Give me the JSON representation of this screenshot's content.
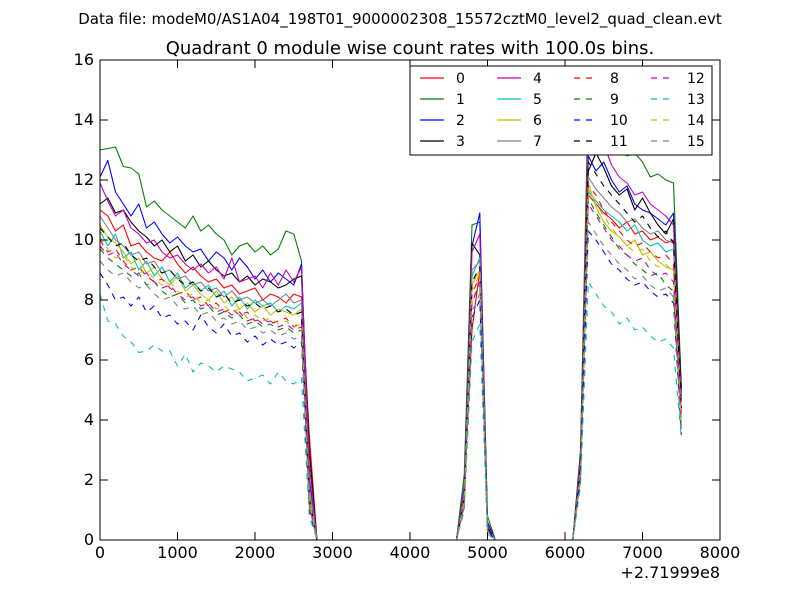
{
  "chart_data": {
    "type": "line",
    "supertitle": "Data file: modeM0/AS1A04_198T01_9000002308_15572cztM0_level2_quad_clean.evt",
    "title": "Quadrant 0 module wise count rates with 100.0s bins.",
    "xlabel": "",
    "ylabel": "",
    "xlim": [
      0,
      8000
    ],
    "ylim": [
      0,
      16
    ],
    "x_offset_label": "+2.71999e8",
    "xticks": [
      0,
      1000,
      2000,
      3000,
      4000,
      5000,
      6000,
      7000,
      8000
    ],
    "xtick_labels": [
      "0",
      "1000",
      "2000",
      "3000",
      "4000",
      "5000",
      "6000",
      "7000",
      "8000"
    ],
    "yticks": [
      0,
      2,
      4,
      6,
      8,
      10,
      12,
      14,
      16
    ],
    "ytick_labels": [
      "0",
      "2",
      "4",
      "6",
      "8",
      "10",
      "12",
      "14",
      "16"
    ],
    "legend_position": "top-right",
    "legend_columns": 4,
    "x": [
      0,
      100,
      200,
      300,
      400,
      500,
      600,
      700,
      800,
      900,
      1000,
      1100,
      1200,
      1300,
      1400,
      1500,
      1600,
      1700,
      1800,
      1900,
      2000,
      2100,
      2200,
      2300,
      2400,
      2500,
      2600,
      2700,
      2800,
      2900,
      4600,
      4700,
      4800,
      4900,
      5000,
      5100,
      6100,
      6200,
      6300,
      6400,
      6500,
      6600,
      6700,
      6800,
      6900,
      7000,
      7100,
      7200,
      7300,
      7400,
      7500
    ],
    "series": [
      {
        "name": "0",
        "color": "#ff0000",
        "dash": "solid",
        "values": [
          11.0,
          10.8,
          10.3,
          10.5,
          9.8,
          9.9,
          9.6,
          9.4,
          9.3,
          9.6,
          9.2,
          8.9,
          9.1,
          8.8,
          8.6,
          8.7,
          8.4,
          8.5,
          8.2,
          8.3,
          8.4,
          8.0,
          8.2,
          8.1,
          7.9,
          8.2,
          8.1,
          3.5,
          0,
          0,
          0,
          1.5,
          7.0,
          9.0,
          0.4,
          0,
          0,
          2.5,
          11.5,
          11.2,
          10.9,
          10.7,
          10.4,
          10.6,
          10.2,
          10.3,
          10.0,
          10.1,
          9.9,
          10.0,
          4.8
        ]
      },
      {
        "name": "1",
        "color": "#008000",
        "dash": "solid",
        "values": [
          13.0,
          13.05,
          13.1,
          12.45,
          12.4,
          12.2,
          11.1,
          11.3,
          11.0,
          10.8,
          10.6,
          10.4,
          10.8,
          10.3,
          10.5,
          10.2,
          10.0,
          9.5,
          9.8,
          9.9,
          9.6,
          9.8,
          9.5,
          9.7,
          10.3,
          10.2,
          9.3,
          2.0,
          0,
          0,
          0,
          2.2,
          10.5,
          10.6,
          0.8,
          0,
          0,
          3.0,
          14.9,
          14.3,
          13.8,
          13.1,
          13.5,
          12.8,
          12.9,
          12.6,
          12.1,
          12.2,
          12.0,
          11.9,
          5.1
        ]
      },
      {
        "name": "2",
        "color": "#0000ff",
        "dash": "solid",
        "values": [
          12.1,
          12.65,
          11.6,
          11.2,
          10.8,
          11.2,
          10.4,
          10.6,
          10.2,
          9.9,
          10.1,
          9.8,
          9.6,
          9.7,
          9.3,
          9.6,
          9.4,
          9.0,
          9.4,
          9.1,
          8.7,
          9.0,
          8.6,
          8.9,
          8.7,
          8.5,
          9.2,
          2.0,
          0,
          0,
          0,
          1.8,
          9.8,
          10.9,
          0.6,
          0,
          0,
          2.8,
          12.8,
          12.3,
          12.6,
          12.0,
          11.6,
          11.8,
          11.2,
          11.0,
          10.9,
          10.7,
          10.5,
          10.9,
          4.9
        ]
      },
      {
        "name": "3",
        "color": "#000000",
        "dash": "solid",
        "values": [
          11.2,
          11.4,
          10.9,
          11.0,
          10.6,
          10.3,
          10.1,
          9.8,
          10.0,
          9.6,
          9.8,
          9.3,
          9.5,
          9.1,
          9.3,
          9.0,
          8.8,
          8.9,
          8.6,
          8.8,
          8.5,
          8.7,
          8.6,
          8.4,
          8.5,
          8.7,
          8.8,
          3.0,
          0,
          0,
          0,
          1.6,
          9.9,
          9.5,
          0.5,
          0,
          0,
          2.6,
          12.3,
          12.9,
          12.4,
          11.8,
          11.5,
          11.7,
          11.0,
          11.4,
          10.9,
          10.5,
          10.2,
          10.7,
          5.0
        ]
      },
      {
        "name": "4",
        "color": "#bf00bf",
        "dash": "solid",
        "values": [
          11.9,
          11.3,
          10.8,
          11.0,
          10.4,
          10.2,
          9.9,
          10.0,
          9.6,
          9.4,
          9.5,
          9.2,
          9.0,
          9.2,
          8.9,
          9.1,
          8.7,
          9.4,
          8.6,
          8.7,
          8.8,
          8.4,
          8.9,
          8.5,
          9.0,
          8.6,
          9.1,
          2.5,
          0,
          0,
          0,
          1.7,
          9.6,
          10.2,
          0.5,
          0,
          0,
          2.7,
          13.6,
          13.7,
          13.2,
          12.5,
          12.1,
          11.9,
          11.5,
          11.6,
          11.2,
          11.0,
          10.8,
          10.5,
          4.6
        ]
      },
      {
        "name": "5",
        "color": "#00bfbf",
        "dash": "solid",
        "values": [
          10.3,
          9.8,
          10.2,
          9.4,
          9.6,
          9.0,
          9.3,
          8.8,
          9.1,
          8.6,
          8.9,
          8.4,
          8.6,
          8.3,
          8.5,
          8.1,
          8.3,
          7.8,
          8.1,
          7.7,
          8.0,
          7.8,
          7.9,
          7.6,
          7.8,
          7.7,
          7.9,
          1.5,
          0,
          0,
          0,
          1.4,
          8.8,
          9.4,
          0.4,
          0,
          0,
          2.3,
          11.6,
          11.3,
          11.0,
          10.8,
          10.6,
          10.3,
          10.5,
          10.0,
          9.8,
          9.9,
          9.6,
          9.7,
          4.0
        ]
      },
      {
        "name": "6",
        "color": "#bfbf00",
        "dash": "solid",
        "values": [
          10.5,
          10.1,
          9.9,
          9.6,
          9.2,
          9.4,
          8.9,
          9.1,
          8.7,
          8.5,
          8.8,
          8.3,
          8.5,
          8.2,
          8.0,
          8.3,
          7.9,
          8.1,
          7.7,
          7.9,
          7.6,
          7.8,
          7.5,
          7.7,
          7.6,
          7.5,
          7.7,
          1.5,
          0,
          0,
          0,
          1.3,
          8.5,
          9.0,
          0.3,
          0,
          0,
          2.2,
          11.9,
          11.1,
          10.6,
          10.3,
          10.1,
          9.8,
          10.0,
          9.5,
          9.6,
          9.3,
          9.1,
          9.0,
          3.9
        ]
      },
      {
        "name": "7",
        "color": "#808080",
        "dash": "solid",
        "values": [
          10.8,
          10.4,
          10.0,
          9.8,
          9.5,
          9.6,
          9.2,
          9.3,
          8.9,
          9.0,
          8.7,
          8.8,
          8.5,
          8.6,
          8.3,
          8.4,
          8.1,
          8.3,
          8.0,
          8.1,
          7.9,
          8.0,
          7.8,
          8.0,
          8.2,
          7.9,
          8.0,
          1.8,
          0,
          0,
          0,
          1.5,
          9.0,
          9.3,
          0.4,
          0,
          0,
          2.4,
          12.1,
          11.7,
          11.4,
          11.1,
          10.9,
          10.6,
          10.7,
          10.4,
          10.2,
          10.3,
          10.0,
          9.9,
          4.3
        ]
      },
      {
        "name": "8",
        "color": "#ff0000",
        "dash": "dashed",
        "values": [
          10.0,
          9.6,
          9.7,
          9.3,
          9.0,
          9.1,
          8.8,
          8.6,
          8.7,
          8.4,
          8.2,
          8.3,
          8.0,
          8.1,
          7.8,
          7.9,
          7.6,
          7.7,
          7.5,
          7.6,
          7.3,
          7.4,
          7.2,
          7.3,
          7.4,
          7.1,
          7.3,
          1.2,
          0,
          0,
          0,
          1.3,
          8.2,
          8.8,
          0.3,
          0,
          0,
          2.2,
          11.8,
          11.5,
          11.0,
          10.6,
          10.3,
          10.0,
          9.8,
          9.9,
          9.6,
          9.4,
          9.5,
          9.2,
          4.1
        ]
      },
      {
        "name": "9",
        "color": "#008000",
        "dash": "dashed",
        "values": [
          9.7,
          9.4,
          9.2,
          9.0,
          8.8,
          8.9,
          8.5,
          8.6,
          8.3,
          8.1,
          8.2,
          7.9,
          8.0,
          7.7,
          7.8,
          7.5,
          7.6,
          7.4,
          7.5,
          7.2,
          7.3,
          7.1,
          7.2,
          7.0,
          7.1,
          6.9,
          7.0,
          1.2,
          0,
          0,
          0,
          1.2,
          8.0,
          8.5,
          0.3,
          0,
          0,
          2.1,
          11.4,
          10.9,
          10.5,
          10.1,
          9.7,
          9.5,
          9.2,
          9.0,
          8.8,
          8.9,
          8.5,
          8.3,
          3.8
        ]
      },
      {
        "name": "10",
        "color": "#0000ff",
        "dash": "dashed",
        "values": [
          8.9,
          8.5,
          8.0,
          8.1,
          7.8,
          8.1,
          7.6,
          7.8,
          7.4,
          7.5,
          7.2,
          7.3,
          7.0,
          7.5,
          7.1,
          6.9,
          7.2,
          6.8,
          6.9,
          6.6,
          6.8,
          6.5,
          6.7,
          6.5,
          6.6,
          6.4,
          6.6,
          1.0,
          0,
          0,
          0,
          1.1,
          7.4,
          8.0,
          0.3,
          0,
          0,
          2.0,
          10.3,
          10.0,
          9.6,
          9.2,
          9.0,
          8.7,
          8.5,
          8.6,
          8.3,
          8.1,
          8.2,
          7.9,
          3.5
        ]
      },
      {
        "name": "11",
        "color": "#000000",
        "dash": "dashed",
        "values": [
          10.4,
          10.1,
          9.8,
          9.9,
          9.5,
          9.3,
          9.4,
          9.1,
          8.9,
          9.0,
          8.7,
          8.5,
          8.6,
          8.3,
          8.4,
          8.1,
          8.2,
          7.9,
          8.0,
          7.8,
          7.9,
          7.7,
          7.8,
          7.6,
          7.7,
          7.5,
          7.6,
          1.4,
          0,
          0,
          0,
          1.4,
          8.6,
          9.1,
          0.4,
          0,
          0,
          2.4,
          12.6,
          12.2,
          11.8,
          11.5,
          11.2,
          10.9,
          10.6,
          10.8,
          10.4,
          10.1,
          10.3,
          9.9,
          4.4
        ]
      },
      {
        "name": "12",
        "color": "#bf00bf",
        "dash": "dashed",
        "values": [
          9.8,
          9.5,
          9.6,
          9.2,
          9.0,
          8.8,
          8.9,
          8.6,
          8.4,
          8.5,
          8.2,
          8.0,
          8.1,
          7.8,
          7.9,
          7.6,
          7.7,
          7.5,
          7.6,
          7.3,
          7.4,
          7.2,
          7.3,
          7.1,
          7.2,
          7.0,
          7.1,
          1.2,
          0,
          0,
          0,
          1.2,
          7.9,
          8.6,
          0.3,
          0,
          0,
          2.1,
          11.2,
          10.8,
          10.4,
          10.0,
          9.8,
          9.5,
          9.3,
          9.4,
          9.0,
          8.8,
          8.9,
          8.6,
          3.7
        ]
      },
      {
        "name": "13",
        "color": "#00bfbf",
        "dash": "dashed",
        "values": [
          8.2,
          7.3,
          7.2,
          6.8,
          6.6,
          6.25,
          6.3,
          6.5,
          6.3,
          6.3,
          5.8,
          6.2,
          5.6,
          5.9,
          5.8,
          5.6,
          5.8,
          5.7,
          5.6,
          5.3,
          5.4,
          5.5,
          5.2,
          5.6,
          5.3,
          5.2,
          5.4,
          0.8,
          0,
          0,
          0,
          1.0,
          6.6,
          7.2,
          0.2,
          0,
          0,
          1.8,
          8.6,
          8.2,
          7.8,
          7.6,
          7.2,
          7.4,
          7.0,
          7.1,
          6.8,
          6.6,
          6.7,
          6.4,
          3.4
        ]
      },
      {
        "name": "14",
        "color": "#bfbf00",
        "dash": "dashed",
        "values": [
          10.1,
          9.7,
          9.4,
          9.5,
          9.1,
          8.9,
          9.0,
          8.7,
          8.5,
          8.6,
          8.3,
          8.1,
          8.2,
          7.9,
          8.0,
          7.7,
          7.8,
          7.6,
          7.7,
          7.4,
          7.5,
          7.3,
          7.4,
          7.2,
          7.3,
          7.1,
          7.2,
          1.3,
          0,
          0,
          0,
          1.3,
          8.3,
          8.9,
          0.3,
          0,
          0,
          2.2,
          11.7,
          11.2,
          10.8,
          10.4,
          10.1,
          9.8,
          9.6,
          9.7,
          9.3,
          9.1,
          9.2,
          8.9,
          3.9
        ]
      },
      {
        "name": "15",
        "color": "#808080",
        "dash": "dashed",
        "values": [
          9.3,
          9.0,
          8.8,
          8.9,
          8.6,
          8.4,
          8.5,
          8.2,
          8.0,
          8.1,
          7.8,
          7.7,
          7.8,
          7.5,
          7.6,
          7.3,
          7.4,
          7.2,
          7.3,
          7.0,
          7.1,
          6.9,
          7.0,
          6.8,
          6.9,
          6.7,
          6.8,
          1.1,
          0,
          0,
          0,
          1.1,
          7.6,
          8.2,
          0.3,
          0,
          0,
          2.0,
          10.6,
          10.2,
          9.8,
          9.5,
          9.2,
          9.0,
          8.7,
          8.8,
          8.5,
          8.3,
          8.4,
          8.1,
          3.6
        ]
      }
    ]
  }
}
